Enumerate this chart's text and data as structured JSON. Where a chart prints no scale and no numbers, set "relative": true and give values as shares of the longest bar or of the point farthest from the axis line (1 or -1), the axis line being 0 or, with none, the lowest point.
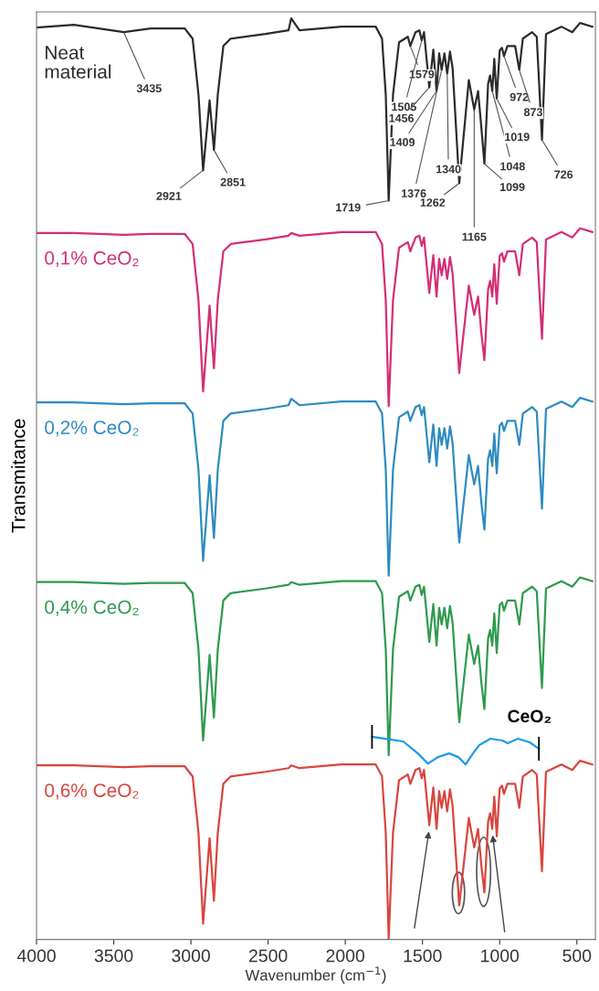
{
  "chart_data": {
    "type": "line",
    "relative": true,
    "xlabel": "Wavenumber (cm$^{−1}$)",
    "ylabel": "Transmitance",
    "xlim": [
      4000,
      380
    ],
    "xticks": [
      4000,
      3500,
      3000,
      2500,
      2000,
      1500,
      1000,
      500
    ],
    "tick_labels": "x",
    "grid": false,
    "legend": false,
    "line_style": "solid",
    "marker": "none",
    "x": [
      4000,
      3759,
      3435,
      3260,
      3040,
      2989,
      2951,
      2921,
      2879,
      2851,
      2826,
      2790,
      2743,
      2517,
      2368,
      2350,
      2297,
      2023,
      1803,
      1762,
      1738,
      1719,
      1691,
      1652,
      1595,
      1579,
      1545,
      1520,
      1505,
      1490,
      1456,
      1430,
      1409,
      1392,
      1376,
      1358,
      1340,
      1322,
      1305,
      1262,
      1200,
      1165,
      1140,
      1118,
      1099,
      1075,
      1062,
      1048,
      1035,
      1019,
      1000,
      985,
      972,
      950,
      900,
      873,
      850,
      790,
      760,
      726,
      700,
      600,
      530,
      480,
      400
    ],
    "series": [
      {
        "name": "Neat\nmaterial",
        "color": "#2b2b2b",
        "values": [
          0.99,
          0.993,
          0.985,
          0.989,
          0.989,
          0.978,
          0.917,
          0.835,
          0.911,
          0.857,
          0.917,
          0.97,
          0.978,
          0.983,
          0.987,
          1.0,
          0.987,
          0.991,
          0.991,
          0.978,
          0.917,
          0.802,
          0.917,
          0.974,
          0.98,
          0.97,
          0.985,
          0.987,
          0.976,
          0.985,
          0.925,
          0.966,
          0.921,
          0.962,
          0.944,
          0.962,
          0.94,
          0.964,
          0.946,
          0.821,
          0.933,
          0.901,
          0.921,
          0.88,
          0.842,
          0.929,
          0.938,
          0.921,
          0.956,
          0.913,
          0.965,
          0.968,
          0.959,
          0.97,
          0.97,
          0.944,
          0.978,
          0.985,
          0.98,
          0.868,
          0.983,
          0.991,
          0.985,
          0.995,
          0.991
        ]
      },
      {
        "name": "0,1% CeO₂",
        "color": "#d42e76",
        "values": [
          0.767,
          0.767,
          0.765,
          0.766,
          0.766,
          0.755,
          0.694,
          0.595,
          0.688,
          0.62,
          0.694,
          0.747,
          0.755,
          0.76,
          0.764,
          0.767,
          0.764,
          0.768,
          0.768,
          0.755,
          0.694,
          0.579,
          0.694,
          0.751,
          0.757,
          0.747,
          0.762,
          0.764,
          0.753,
          0.762,
          0.702,
          0.743,
          0.698,
          0.739,
          0.721,
          0.739,
          0.717,
          0.741,
          0.723,
          0.615,
          0.71,
          0.678,
          0.698,
          0.657,
          0.629,
          0.706,
          0.715,
          0.698,
          0.733,
          0.69,
          0.742,
          0.745,
          0.736,
          0.747,
          0.747,
          0.721,
          0.755,
          0.762,
          0.757,
          0.652,
          0.76,
          0.768,
          0.762,
          0.772,
          0.768
        ]
      },
      {
        "name": "0,2% CeO₂",
        "color": "#2e8bc0",
        "values": [
          0.583,
          0.583,
          0.581,
          0.582,
          0.582,
          0.571,
          0.51,
          0.411,
          0.504,
          0.436,
          0.51,
          0.563,
          0.571,
          0.576,
          0.58,
          0.587,
          0.58,
          0.584,
          0.584,
          0.571,
          0.51,
          0.395,
          0.51,
          0.567,
          0.573,
          0.563,
          0.578,
          0.58,
          0.569,
          0.578,
          0.518,
          0.559,
          0.514,
          0.555,
          0.537,
          0.555,
          0.533,
          0.557,
          0.539,
          0.431,
          0.526,
          0.494,
          0.514,
          0.473,
          0.445,
          0.522,
          0.531,
          0.514,
          0.549,
          0.506,
          0.558,
          0.561,
          0.552,
          0.563,
          0.563,
          0.537,
          0.571,
          0.578,
          0.573,
          0.468,
          0.576,
          0.584,
          0.578,
          0.588,
          0.584
        ]
      },
      {
        "name": "0,4% CeO₂",
        "color": "#2e9a4e",
        "values": [
          0.388,
          0.388,
          0.386,
          0.387,
          0.387,
          0.376,
          0.315,
          0.216,
          0.309,
          0.241,
          0.315,
          0.368,
          0.376,
          0.381,
          0.385,
          0.388,
          0.385,
          0.389,
          0.389,
          0.376,
          0.315,
          0.2,
          0.315,
          0.372,
          0.378,
          0.368,
          0.383,
          0.385,
          0.374,
          0.383,
          0.323,
          0.364,
          0.319,
          0.36,
          0.342,
          0.36,
          0.338,
          0.362,
          0.344,
          0.236,
          0.331,
          0.299,
          0.319,
          0.278,
          0.25,
          0.327,
          0.336,
          0.319,
          0.354,
          0.311,
          0.363,
          0.366,
          0.357,
          0.368,
          0.368,
          0.342,
          0.376,
          0.383,
          0.378,
          0.273,
          0.381,
          0.389,
          0.383,
          0.393,
          0.389
        ]
      },
      {
        "name": "0,6% CeO₂",
        "color": "#d9453d",
        "values": [
          0.189,
          0.189,
          0.187,
          0.188,
          0.188,
          0.177,
          0.116,
          0.017,
          0.11,
          0.042,
          0.116,
          0.169,
          0.177,
          0.182,
          0.186,
          0.189,
          0.186,
          0.19,
          0.19,
          0.177,
          0.116,
          0.001,
          0.116,
          0.173,
          0.179,
          0.169,
          0.184,
          0.186,
          0.175,
          0.184,
          0.124,
          0.165,
          0.12,
          0.161,
          0.143,
          0.161,
          0.139,
          0.163,
          0.145,
          0.037,
          0.132,
          0.1,
          0.12,
          0.079,
          0.051,
          0.128,
          0.137,
          0.12,
          0.155,
          0.112,
          0.164,
          0.167,
          0.158,
          0.169,
          0.169,
          0.143,
          0.177,
          0.184,
          0.179,
          0.074,
          0.182,
          0.19,
          0.184,
          0.194,
          0.19
        ]
      },
      {
        "name": "CeO₂",
        "color": "#1f9be8",
        "x": [
          1827,
          1625,
          1530,
          1465,
          1399,
          1328,
          1268,
          1221,
          1173,
          1132,
          1060,
          983,
          948,
          882,
          805,
          746
        ],
        "values": [
          0.22,
          0.215,
          0.202,
          0.191,
          0.198,
          0.202,
          0.198,
          0.19,
          0.202,
          0.211,
          0.218,
          0.216,
          0.213,
          0.218,
          0.214,
          0.207
        ]
      }
    ],
    "annotations": [
      {
        "text": "3435",
        "x": 3435,
        "y": 0.985
      },
      {
        "text": "2921",
        "x": 2921,
        "y": 0.835
      },
      {
        "text": "2851",
        "x": 2851,
        "y": 0.857
      },
      {
        "text": "1719",
        "x": 1719,
        "y": 0.802
      },
      {
        "text": "1579",
        "x": 1579,
        "y": 0.97
      },
      {
        "text": "1505",
        "x": 1505,
        "y": 0.976
      },
      {
        "text": "1456",
        "x": 1456,
        "y": 0.925
      },
      {
        "text": "1409",
        "x": 1409,
        "y": 0.921
      },
      {
        "text": "1376",
        "x": 1376,
        "y": 0.944
      },
      {
        "text": "1340",
        "x": 1340,
        "y": 0.94
      },
      {
        "text": "1262",
        "x": 1262,
        "y": 0.821
      },
      {
        "text": "1165",
        "x": 1165,
        "y": 0.901
      },
      {
        "text": "1099",
        "x": 1099,
        "y": 0.842
      },
      {
        "text": "1048",
        "x": 1048,
        "y": 0.921
      },
      {
        "text": "1019",
        "x": 1019,
        "y": 0.913
      },
      {
        "text": "972",
        "x": 972,
        "y": 0.959
      },
      {
        "text": "873",
        "x": 873,
        "y": 0.944
      },
      {
        "text": "726",
        "x": 726,
        "y": 0.868
      }
    ]
  }
}
